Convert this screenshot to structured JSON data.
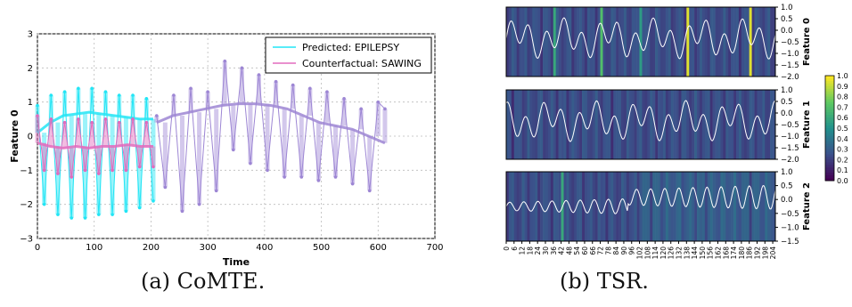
{
  "captions": {
    "a": "(a) CoMTE.",
    "b": "(b) TSR."
  },
  "colors": {
    "predicted": "#22e5f5",
    "counterfactual": "#e26bbd",
    "overlap": "#9d86d4",
    "grid": "#bbbbbb",
    "heat_low": "#440154",
    "heat_mid": "#21918c",
    "heat_high": "#fde725"
  },
  "chart_data": [
    {
      "type": "line",
      "title": "",
      "xlabel": "Time",
      "ylabel": "Feature 0",
      "xlim": [
        0,
        700
      ],
      "ylim": [
        -3,
        3
      ],
      "x_ticks": [
        "0",
        "100",
        "200",
        "300",
        "400",
        "500",
        "600",
        "700"
      ],
      "y_ticks": [
        "3",
        "2",
        "1",
        "0",
        "−1",
        "−2",
        "−3"
      ],
      "grid": true,
      "legend_position": "top-right",
      "series": [
        {
          "name": "Predicted: EPILEPSY",
          "color": "#22e5f5",
          "x": [
            0,
            12,
            24,
            36,
            48,
            60,
            72,
            84,
            96,
            108,
            120,
            132,
            144,
            156,
            168,
            180,
            192,
            204
          ],
          "values": [
            0.9,
            -2.0,
            1.2,
            -2.3,
            1.3,
            -2.4,
            1.4,
            -2.4,
            1.4,
            -2.3,
            1.3,
            -2.3,
            1.2,
            -2.2,
            1.2,
            -2.1,
            1.1,
            -1.9
          ],
          "trend": [
            0.1,
            0.4,
            0.6,
            0.65,
            0.7,
            0.65,
            0.6,
            0.55,
            0.5,
            0.5
          ]
        },
        {
          "name": "Counterfactual: SAWING",
          "color": "#e26bbd",
          "x": [
            0,
            12,
            24,
            36,
            48,
            60,
            72,
            84,
            96,
            108,
            120,
            132,
            144,
            156,
            168,
            180,
            192,
            204
          ],
          "values": [
            0.6,
            -1.0,
            0.5,
            -1.1,
            0.4,
            -1.2,
            0.5,
            -1.0,
            0.4,
            -1.1,
            0.5,
            -1.0,
            0.4,
            -1.0,
            0.5,
            -0.9,
            0.4,
            -0.9
          ],
          "trend": [
            -0.2,
            -0.3,
            -0.35,
            -0.3,
            -0.35,
            -0.3,
            -0.3,
            -0.25,
            -0.3,
            -0.3
          ]
        },
        {
          "name": "",
          "color": "#9d86d4",
          "x": [
            210,
            225,
            240,
            255,
            270,
            285,
            300,
            315,
            330,
            345,
            360,
            375,
            390,
            405,
            420,
            435,
            450,
            465,
            480,
            495,
            510,
            525,
            540,
            555,
            570,
            585,
            600,
            612
          ],
          "values": [
            0.6,
            -1.5,
            1.2,
            -2.2,
            1.4,
            -2.0,
            1.3,
            -1.6,
            2.2,
            -0.4,
            2.0,
            -0.8,
            1.8,
            -1.0,
            1.6,
            -1.2,
            1.5,
            -1.2,
            1.4,
            -1.3,
            1.3,
            -1.2,
            1.1,
            -1.4,
            0.8,
            -1.6,
            1.0,
            0.8
          ],
          "trend": [
            0.4,
            0.6,
            0.7,
            0.8,
            0.9,
            0.95,
            0.95,
            0.9,
            0.8,
            0.6,
            0.4,
            0.3,
            0.2,
            0.0,
            -0.2
          ]
        }
      ]
    },
    {
      "type": "heatmap",
      "title": "",
      "panels": [
        {
          "label": "Feature 0",
          "y_ticks": [
            "1.0",
            "0.5",
            "0.0",
            "−0.5",
            "−1.0",
            "−1.5",
            "−2.0"
          ]
        },
        {
          "label": "Feature 1",
          "y_ticks": [
            "1.0",
            "0.5",
            "0.0",
            "−0.5",
            "−1.0",
            "−1.5",
            "−2.0"
          ]
        },
        {
          "label": "Feature 2",
          "y_ticks": [
            "1.0",
            "0.5",
            "0.0",
            "−0.5",
            "−1.0",
            "−1.5"
          ]
        }
      ],
      "x_ticks": [
        "0",
        "6",
        "12",
        "18",
        "24",
        "30",
        "36",
        "42",
        "48",
        "54",
        "60",
        "66",
        "72",
        "78",
        "84",
        "90",
        "96",
        "102",
        "108",
        "114",
        "120",
        "126",
        "132",
        "138",
        "144",
        "150",
        "156",
        "162",
        "168",
        "174",
        "180",
        "186",
        "192",
        "198",
        "204"
      ],
      "colorbar": {
        "min": 0.0,
        "max": 1.0,
        "ticks": [
          "1.0",
          "0.9",
          "0.8",
          "0.7",
          "0.6",
          "0.5",
          "0.4",
          "0.3",
          "0.2",
          "0.1",
          "0.0"
        ]
      },
      "highlights": [
        {
          "panel": 0,
          "x": 36,
          "value": 0.6
        },
        {
          "panel": 0,
          "x": 72,
          "value": 0.7
        },
        {
          "panel": 0,
          "x": 102,
          "value": 0.55
        },
        {
          "panel": 0,
          "x": 138,
          "value": 0.95
        },
        {
          "panel": 0,
          "x": 186,
          "value": 0.95
        },
        {
          "panel": 2,
          "x": 42,
          "value": 0.6
        }
      ]
    }
  ]
}
